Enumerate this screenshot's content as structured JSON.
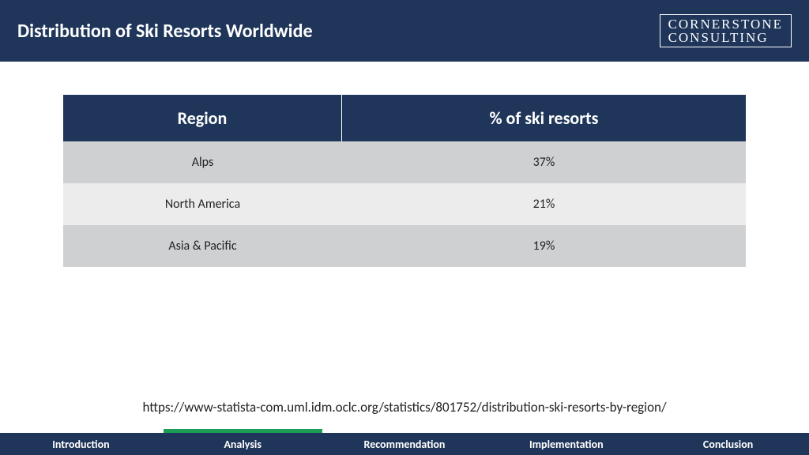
{
  "colors": {
    "navy": "#1f3559",
    "row_dark": "#cfd0d2",
    "row_light": "#ececed",
    "accent_green": "#1b9d55",
    "white": "#ffffff"
  },
  "header": {
    "title": "Distribution of Ski Resorts Worldwide",
    "logo_line1": "CORNERSTONE",
    "logo_line2": "CONSULTING"
  },
  "table": {
    "columns": [
      "Region",
      "% of ski resorts"
    ],
    "rows": [
      [
        "Alps",
        "37%"
      ],
      [
        "North America",
        "21%"
      ],
      [
        "Asia & Pacific",
        "19%"
      ]
    ],
    "header_bg": "#1f3559",
    "header_fontsize": 22,
    "row_colors": [
      "#cfd0d2",
      "#ececed",
      "#cfd0d2"
    ],
    "cell_fontsize": 16
  },
  "source": "https://www-statista-com.uml.idm.oclc.org/statistics/801752/distribution-ski-resorts-by-region/",
  "footer": {
    "tabs": [
      "Introduction",
      "Analysis",
      "Recommendation",
      "Implementation",
      "Conclusion"
    ],
    "active_index": 1
  }
}
